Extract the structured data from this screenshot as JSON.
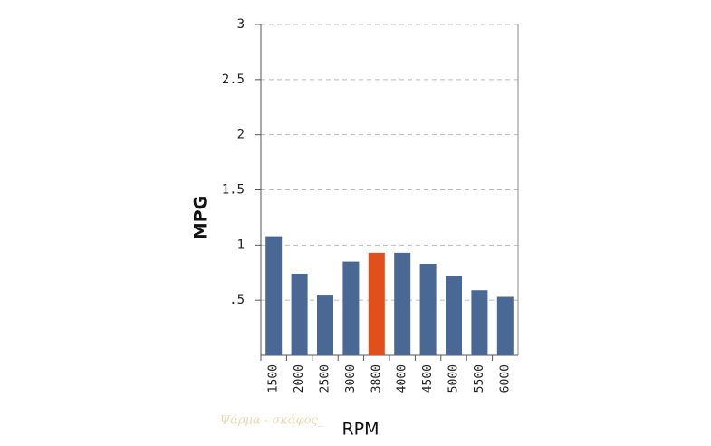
{
  "chart_data": {
    "type": "bar",
    "x_label": "RPM",
    "y_label": "MPG",
    "categories": [
      "1500",
      "2000",
      "2500",
      "3000",
      "3800",
      "4000",
      "4500",
      "5000",
      "5500",
      "6000"
    ],
    "values": [
      1.08,
      0.74,
      0.55,
      0.85,
      0.93,
      0.93,
      0.83,
      0.72,
      0.59,
      0.53
    ],
    "colors": [
      "#4a6894",
      "#4a6894",
      "#4a6894",
      "#4a6894",
      "#e0501c",
      "#4a6894",
      "#4a6894",
      "#4a6894",
      "#4a6894",
      "#4a6894"
    ],
    "ylim": [
      0,
      3
    ],
    "yticks": [
      {
        "value": 0.5,
        "label": ".5"
      },
      1,
      1.5,
      2,
      2.5,
      3
    ],
    "grid": true,
    "watermark": "Ψάρμα - σκάφος_"
  }
}
